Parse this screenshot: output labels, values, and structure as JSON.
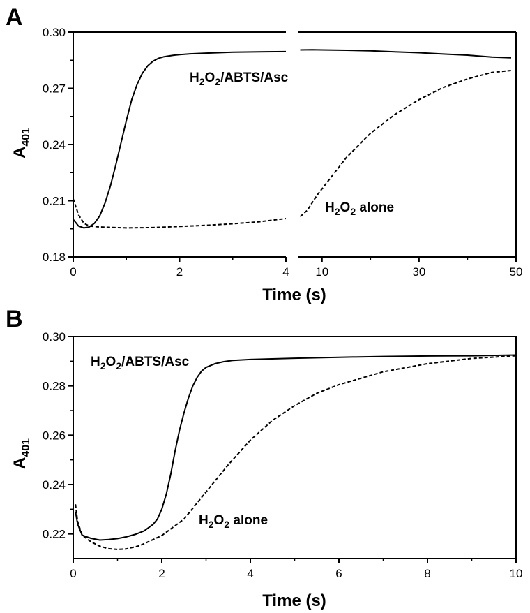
{
  "figure": {
    "panels": [
      {
        "letter": "A",
        "ylabel_main": "A",
        "ylabel_sub": "401",
        "xlabel": "Time (s)"
      },
      {
        "letter": "B",
        "ylabel_main": "A",
        "ylabel_sub": "401",
        "xlabel": "Time (s)"
      }
    ]
  },
  "chart_data": [
    {
      "type": "line",
      "panel": "A",
      "xlabel": "Time (s)",
      "ylabel": "A401",
      "x_axis_segments": [
        {
          "xlim": [
            0,
            4
          ],
          "ticks": [
            0,
            2,
            4
          ],
          "tick_labels": [
            "0",
            "2",
            "4"
          ]
        },
        {
          "xlim": [
            5,
            50
          ],
          "ticks": [
            10,
            30,
            50
          ],
          "tick_labels": [
            "10",
            "30",
            "50"
          ]
        }
      ],
      "ylim": [
        0.18,
        0.3
      ],
      "yticks": [
        0.18,
        0.21,
        0.24,
        0.27,
        0.3
      ],
      "ytick_labels": [
        "0.18",
        "0.21",
        "0.24",
        "0.27",
        "0.30"
      ],
      "grid": false,
      "series": [
        {
          "name": "H2O2/ABTS/Asc",
          "label_main": [
            "H",
            "2",
            "O",
            "2",
            "/ABTS/Asc"
          ],
          "style": "solid",
          "x": [
            0.0,
            0.1,
            0.2,
            0.3,
            0.4,
            0.5,
            0.6,
            0.7,
            0.8,
            0.9,
            1.0,
            1.1,
            1.2,
            1.3,
            1.4,
            1.5,
            1.6,
            1.7,
            1.8,
            1.9,
            2.0,
            2.2,
            2.5,
            3.0,
            3.5,
            4.0,
            5.5,
            8,
            10,
            15,
            20,
            25,
            30,
            35,
            40,
            45,
            49
          ],
          "y": [
            0.2,
            0.1965,
            0.1955,
            0.196,
            0.198,
            0.202,
            0.209,
            0.218,
            0.229,
            0.241,
            0.253,
            0.264,
            0.272,
            0.278,
            0.282,
            0.2845,
            0.286,
            0.2868,
            0.2873,
            0.2877,
            0.288,
            0.2884,
            0.2888,
            0.2893,
            0.2895,
            0.2896,
            0.2905,
            0.2906,
            0.2905,
            0.2903,
            0.29,
            0.2895,
            0.289,
            0.2883,
            0.2877,
            0.2867,
            0.2863
          ]
        },
        {
          "name": "H2O2 alone",
          "label_main": [
            "H",
            "2",
            "O",
            "2",
            " alone"
          ],
          "style": "dashed",
          "x": [
            0.0,
            0.1,
            0.2,
            0.3,
            0.5,
            1.0,
            1.5,
            2.0,
            2.5,
            3.0,
            3.5,
            4.0,
            5.5,
            7,
            9,
            12,
            15,
            20,
            25,
            30,
            35,
            40,
            45,
            49
          ],
          "y": [
            0.211,
            0.2025,
            0.198,
            0.1965,
            0.196,
            0.1955,
            0.1957,
            0.1963,
            0.1969,
            0.1977,
            0.1988,
            0.2005,
            0.2015,
            0.205,
            0.213,
            0.223,
            0.233,
            0.246,
            0.256,
            0.264,
            0.2705,
            0.275,
            0.2785,
            0.2795
          ]
        }
      ]
    },
    {
      "type": "line",
      "panel": "B",
      "xlabel": "Time (s)",
      "ylabel": "A401",
      "xlim": [
        0,
        10
      ],
      "xticks": [
        0,
        2,
        4,
        6,
        8,
        10
      ],
      "xtick_labels": [
        "0",
        "2",
        "4",
        "6",
        "8",
        "10"
      ],
      "ylim": [
        0.21,
        0.3
      ],
      "yticks": [
        0.22,
        0.24,
        0.26,
        0.28,
        0.3
      ],
      "ytick_labels": [
        "0.22",
        "0.24",
        "0.26",
        "0.28",
        "0.30"
      ],
      "grid": false,
      "series": [
        {
          "name": "H2O2/ABTS/Asc",
          "label_main": [
            "H",
            "2",
            "O",
            "2",
            "/ABTS/Asc"
          ],
          "style": "solid",
          "x": [
            0.05,
            0.1,
            0.2,
            0.4,
            0.6,
            0.8,
            1.0,
            1.2,
            1.4,
            1.6,
            1.8,
            1.9,
            2.0,
            2.1,
            2.2,
            2.3,
            2.4,
            2.5,
            2.6,
            2.7,
            2.8,
            2.9,
            3.0,
            3.2,
            3.4,
            3.6,
            4.0,
            5.0,
            6.0,
            7.0,
            8.0,
            9.0,
            10.0
          ],
          "y": [
            0.229,
            0.224,
            0.2195,
            0.2182,
            0.2175,
            0.2177,
            0.2181,
            0.2188,
            0.2198,
            0.2212,
            0.2238,
            0.226,
            0.23,
            0.236,
            0.244,
            0.2535,
            0.262,
            0.269,
            0.275,
            0.28,
            0.2835,
            0.286,
            0.2875,
            0.289,
            0.2898,
            0.2903,
            0.2907,
            0.2912,
            0.2916,
            0.2919,
            0.2921,
            0.2922,
            0.2925
          ]
        },
        {
          "name": "H2O2 alone",
          "label_main": [
            "H",
            "2",
            "O",
            "2",
            " alone"
          ],
          "style": "dashed",
          "x": [
            0.05,
            0.1,
            0.2,
            0.4,
            0.6,
            0.8,
            1.0,
            1.2,
            1.5,
            2.0,
            2.5,
            3.0,
            3.5,
            4.0,
            4.5,
            5.0,
            5.5,
            6.0,
            7.0,
            8.0,
            9.0,
            10.0
          ],
          "y": [
            0.232,
            0.225,
            0.2195,
            0.2168,
            0.215,
            0.214,
            0.2137,
            0.2139,
            0.2152,
            0.2193,
            0.226,
            0.237,
            0.248,
            0.258,
            0.266,
            0.272,
            0.277,
            0.2805,
            0.2857,
            0.289,
            0.2911,
            0.2922
          ]
        }
      ]
    }
  ]
}
